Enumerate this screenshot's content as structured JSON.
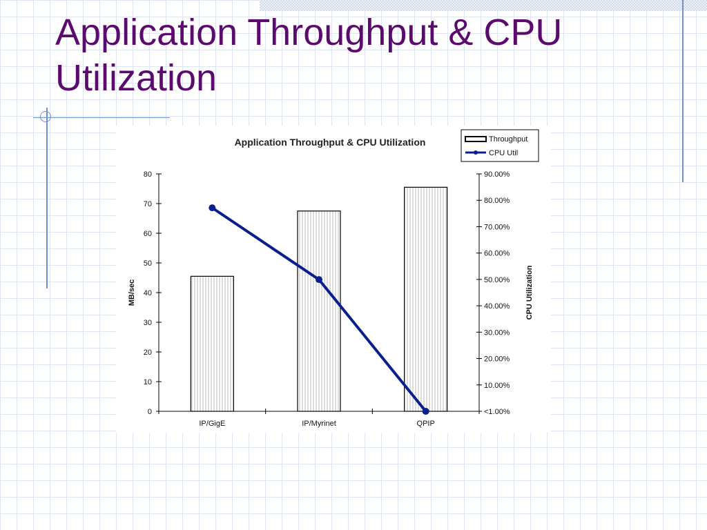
{
  "slide": {
    "title": "Application Throughput & CPU Utilization"
  },
  "chart_data": {
    "type": "bar",
    "title": "Application Throughput & CPU Utilization",
    "categories": [
      "IP/GigE",
      "IP/Myrinet",
      "QPIP"
    ],
    "series": [
      {
        "name": "Throughput",
        "type": "bar",
        "axis": "left",
        "values": [
          45.5,
          67.5,
          75.5
        ]
      },
      {
        "name": "CPU Util",
        "type": "line",
        "axis": "right",
        "values": [
          77.0,
          49.5,
          -1.0
        ]
      }
    ],
    "ylabel": "MB/sec",
    "y2label": "CPU Utilization",
    "ylim": [
      0,
      80
    ],
    "y2lim": [
      -1,
      90
    ],
    "yticks": [
      "0",
      "10",
      "20",
      "30",
      "40",
      "50",
      "60",
      "70",
      "80"
    ],
    "y2ticks": [
      "<1.00%",
      "10.00%",
      "20.00%",
      "30.00%",
      "40.00%",
      "50.00%",
      "60.00%",
      "70.00%",
      "80.00%",
      "90.00%"
    ],
    "legend_position": "top-right",
    "grid": false,
    "colors": {
      "bar_stroke": "#000000",
      "bar_hatch": "#b8b8b8",
      "line": "#0a1f8f",
      "title": "#5b0a6e"
    }
  }
}
